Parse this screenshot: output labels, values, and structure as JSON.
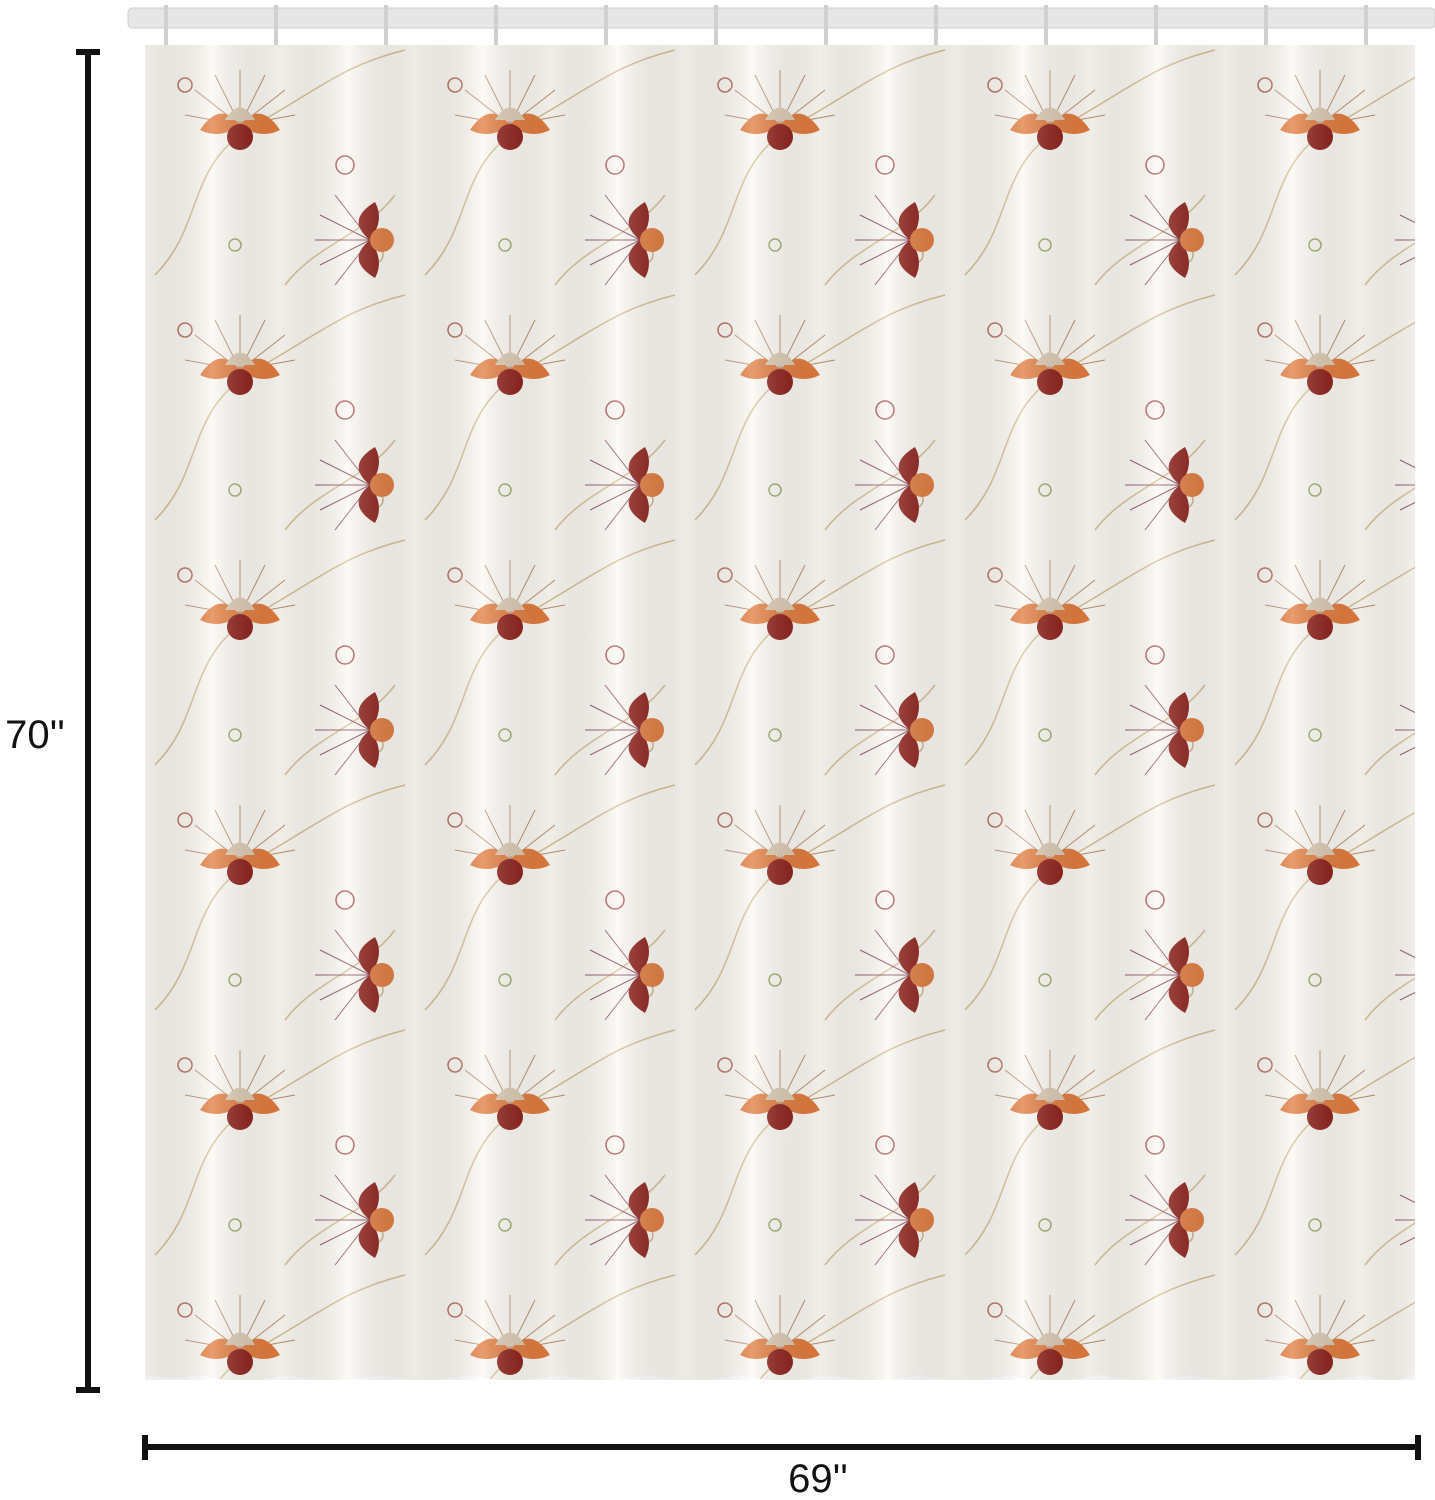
{
  "dimensions": {
    "height": "70''",
    "width": "69''"
  }
}
